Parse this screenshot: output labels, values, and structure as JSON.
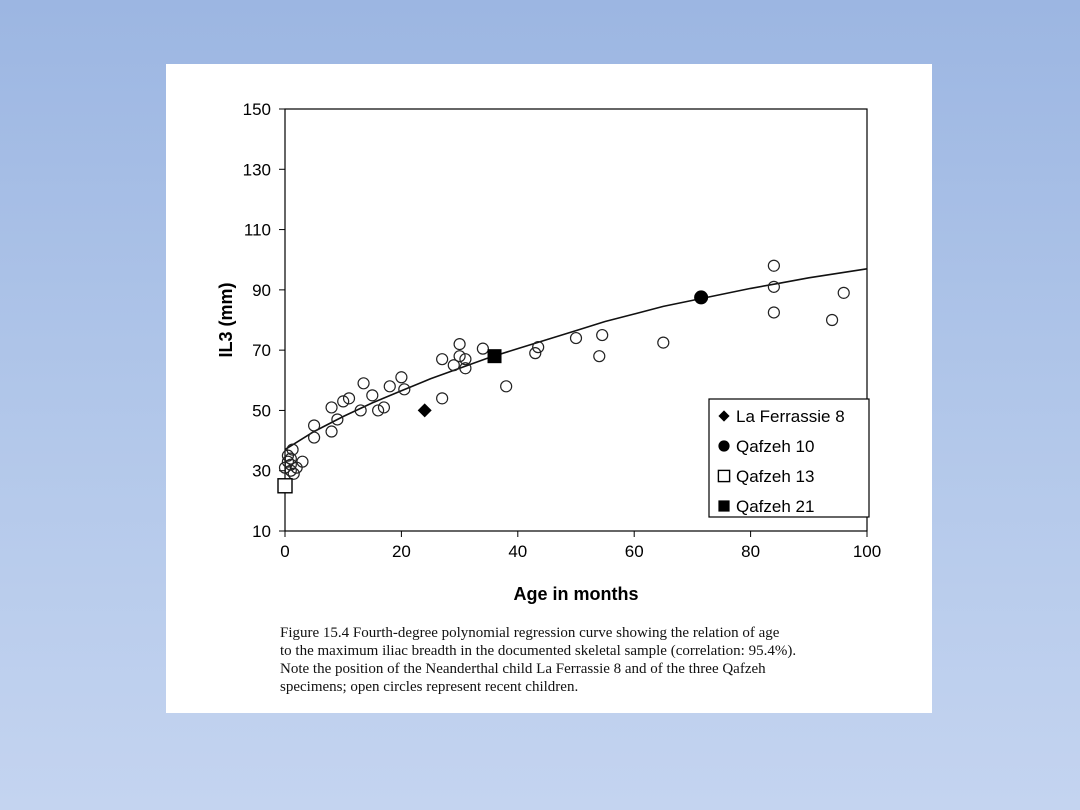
{
  "chart_data": {
    "type": "scatter",
    "xlabel": "Age in months",
    "ylabel": "IL3 (mm)",
    "xlim": [
      0,
      100
    ],
    "ylim": [
      10,
      150
    ],
    "xticks": [
      0,
      20,
      40,
      60,
      80,
      100
    ],
    "yticks": [
      10,
      30,
      50,
      70,
      90,
      110,
      130,
      150
    ],
    "grid": false,
    "legend_position": "bottom-right",
    "curve": {
      "name": "Fourth-degree polynomial regression",
      "x": [
        0,
        5,
        10,
        15,
        20,
        25,
        30,
        35,
        40,
        45,
        50,
        55,
        60,
        65,
        70,
        75,
        80,
        85,
        90,
        95,
        100
      ],
      "y": [
        37,
        43,
        48,
        52.5,
        56.5,
        60.5,
        64,
        67.5,
        70.5,
        73.5,
        76.5,
        79.5,
        82,
        84.5,
        86.5,
        88.5,
        90.5,
        92.2,
        94,
        95.5,
        97
      ]
    },
    "series": [
      {
        "name": "Recent children",
        "marker": "open-circle",
        "points": [
          [
            0,
            31
          ],
          [
            0.5,
            33
          ],
          [
            0.5,
            35
          ],
          [
            1,
            30
          ],
          [
            1,
            32
          ],
          [
            1,
            34
          ],
          [
            1.3,
            37
          ],
          [
            1.5,
            29
          ],
          [
            2,
            31
          ],
          [
            3,
            33
          ],
          [
            5,
            41
          ],
          [
            5,
            45
          ],
          [
            8,
            43
          ],
          [
            8,
            51
          ],
          [
            9,
            47
          ],
          [
            10,
            53
          ],
          [
            11,
            54
          ],
          [
            13,
            50
          ],
          [
            13.5,
            59
          ],
          [
            15,
            55
          ],
          [
            16,
            50
          ],
          [
            17,
            51
          ],
          [
            18,
            58
          ],
          [
            20,
            61
          ],
          [
            20.5,
            57
          ],
          [
            27,
            54
          ],
          [
            27,
            67
          ],
          [
            29,
            65
          ],
          [
            30,
            68
          ],
          [
            30,
            72
          ],
          [
            31,
            64
          ],
          [
            31,
            67
          ],
          [
            34,
            70.5
          ],
          [
            38,
            58
          ],
          [
            43,
            69
          ],
          [
            43.5,
            71
          ],
          [
            50,
            74
          ],
          [
            54,
            68
          ],
          [
            54.5,
            75
          ],
          [
            65,
            72.5
          ],
          [
            84,
            98
          ],
          [
            84,
            91
          ],
          [
            84,
            82.5
          ],
          [
            94,
            80
          ],
          [
            96,
            89
          ]
        ]
      },
      {
        "name": "La Ferrassie 8",
        "marker": "filled-diamond",
        "points": [
          [
            24,
            50
          ]
        ]
      },
      {
        "name": "Qafzeh 10",
        "marker": "filled-circle",
        "points": [
          [
            71.5,
            87.5
          ]
        ]
      },
      {
        "name": "Qafzeh 13",
        "marker": "open-square",
        "points": [
          [
            0,
            25
          ]
        ]
      },
      {
        "name": "Qafzeh 21",
        "marker": "filled-square",
        "points": [
          [
            36,
            68
          ]
        ]
      }
    ],
    "legend": [
      "La Ferrassie 8",
      "Qafzeh 10",
      "Qafzeh 13",
      "Qafzeh 21"
    ]
  },
  "caption": {
    "lines": [
      "Figure 15.4   Fourth-degree polynomial regression curve showing the relation of age",
      "to the maximum iliac breadth in the documented skeletal sample (correlation: 95.4%).",
      "Note the position of the Neanderthal child La Ferrassie 8 and of the three Qafzeh",
      "specimens; open circles represent recent children."
    ]
  }
}
